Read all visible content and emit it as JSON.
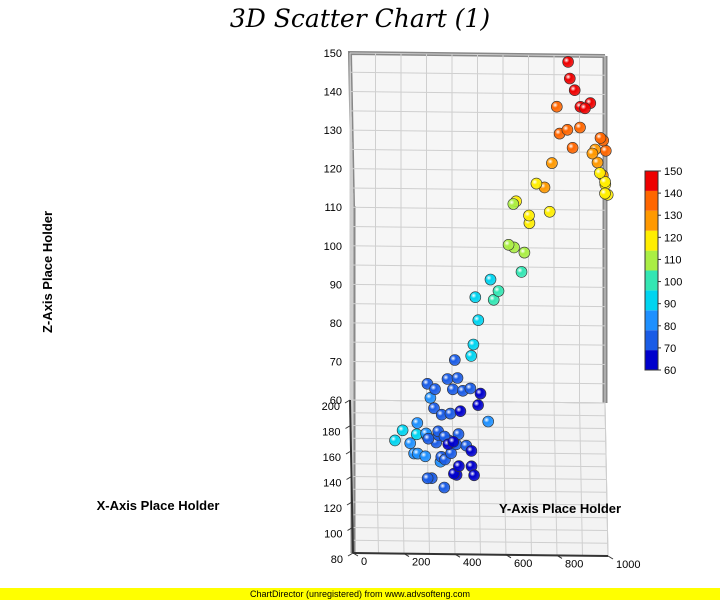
{
  "chart_data": {
    "type": "scatter",
    "title": "3D Scatter Chart (1)",
    "xlabel": "X-Axis Place Holder",
    "ylabel": "Y-Axis Place Holder",
    "zlabel": "Z-Axis Place Holder",
    "xlim": [
      80,
      200
    ],
    "ylim": [
      0,
      1000
    ],
    "zlim": [
      60,
      150
    ],
    "x_ticks": [
      "80",
      "100",
      "120",
      "140",
      "160",
      "180",
      "200"
    ],
    "y_ticks": [
      "0",
      "200",
      "400",
      "600",
      "800",
      "1000"
    ],
    "z_ticks": [
      "60",
      "70",
      "80",
      "90",
      "100",
      "110",
      "120",
      "130",
      "140",
      "150"
    ],
    "colorbar": {
      "ticks": [
        "60",
        "70",
        "80",
        "90",
        "100",
        "110",
        "120",
        "130",
        "140",
        "150"
      ],
      "colors": [
        "#0000cc",
        "#1a5ce6",
        "#1e90ff",
        "#00d4f0",
        "#33e6b3",
        "#aaee44",
        "#ffee00",
        "#ff9900",
        "#ff6600",
        "#ee0000"
      ]
    },
    "points": [
      [
        84,
        165,
        88
      ],
      [
        86,
        195,
        90
      ],
      [
        83,
        250,
        90
      ],
      [
        88,
        225,
        86
      ],
      [
        86,
        240,
        84
      ],
      [
        82,
        290,
        90
      ],
      [
        92,
        255,
        82
      ],
      [
        94,
        310,
        75
      ],
      [
        96,
        285,
        80
      ],
      [
        98,
        345,
        78
      ],
      [
        103,
        295,
        72
      ],
      [
        102,
        360,
        70
      ],
      [
        110,
        255,
        84
      ],
      [
        114,
        290,
        80
      ],
      [
        116,
        330,
        77
      ],
      [
        122,
        300,
        76
      ],
      [
        120,
        350,
        72
      ],
      [
        124,
        365,
        70
      ],
      [
        118,
        410,
        68
      ],
      [
        125,
        400,
        66
      ],
      [
        128,
        420,
        67
      ],
      [
        132,
        390,
        69
      ],
      [
        136,
        410,
        70
      ],
      [
        130,
        380,
        73
      ],
      [
        128,
        340,
        75
      ],
      [
        140,
        340,
        72
      ],
      [
        142,
        365,
        70
      ],
      [
        148,
        310,
        78
      ],
      [
        155,
        325,
        73
      ],
      [
        153,
        355,
        72
      ],
      [
        165,
        300,
        76
      ],
      [
        167,
        330,
        74
      ],
      [
        160,
        390,
        70
      ],
      [
        150,
        400,
        66
      ],
      [
        145,
        380,
        67
      ],
      [
        144,
        420,
        70
      ],
      [
        138,
        450,
        69
      ],
      [
        140,
        470,
        67
      ],
      [
        134,
        470,
        65
      ],
      [
        133,
        480,
        63
      ],
      [
        170,
        400,
        73
      ],
      [
        175,
        380,
        74
      ],
      [
        168,
        430,
        68
      ],
      [
        178,
        440,
        70
      ],
      [
        185,
        420,
        71
      ],
      [
        180,
        470,
        70
      ],
      [
        176,
        500,
        67
      ],
      [
        182,
        510,
        68
      ],
      [
        190,
        410,
        74
      ],
      [
        130,
        535,
        78
      ],
      [
        145,
        470,
        90
      ],
      [
        160,
        480,
        88
      ],
      [
        170,
        500,
        91
      ],
      [
        185,
        490,
        92
      ],
      [
        165,
        560,
        98
      ],
      [
        175,
        580,
        97
      ],
      [
        190,
        550,
        95
      ],
      [
        170,
        640,
        110
      ],
      [
        178,
        620,
        108
      ],
      [
        172,
        670,
        103
      ],
      [
        160,
        680,
        112
      ],
      [
        165,
        700,
        118
      ],
      [
        185,
        650,
        117
      ],
      [
        195,
        640,
        113
      ],
      [
        180,
        700,
        115
      ],
      [
        190,
        730,
        120
      ],
      [
        172,
        760,
        125
      ],
      [
        168,
        780,
        120
      ],
      [
        182,
        790,
        128
      ],
      [
        178,
        820,
        137
      ],
      [
        190,
        810,
        140
      ],
      [
        175,
        850,
        139
      ],
      [
        170,
        870,
        136
      ],
      [
        182,
        860,
        150
      ],
      [
        166,
        900,
        148
      ],
      [
        180,
        900,
        138
      ],
      [
        188,
        880,
        145
      ],
      [
        195,
        855,
        150
      ],
      [
        186,
        920,
        141
      ],
      [
        178,
        940,
        145
      ],
      [
        175,
        980,
        137
      ],
      [
        170,
        990,
        138
      ],
      [
        168,
        1000,
        136
      ],
      [
        184,
        960,
        131
      ],
      [
        192,
        970,
        125
      ],
      [
        196,
        950,
        126
      ],
      [
        188,
        990,
        123
      ],
      [
        190,
        1000,
        120
      ],
      [
        195,
        1000,
        119
      ],
      [
        199,
        980,
        120
      ],
      [
        194,
        1010,
        116
      ],
      [
        198,
        1000,
        115
      ]
    ]
  },
  "footer": {
    "text": "ChartDirector (unregistered) from www.advsofteng.com"
  }
}
